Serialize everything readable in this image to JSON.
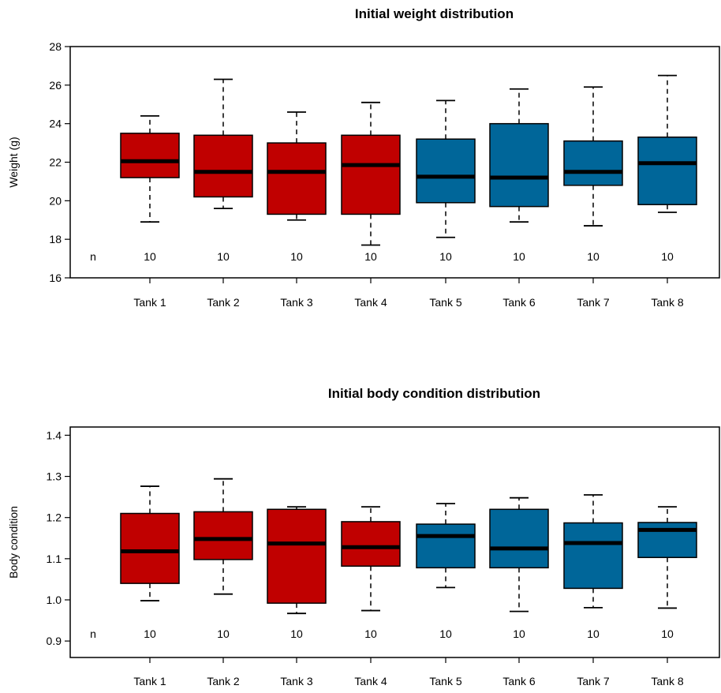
{
  "chart_data": [
    {
      "type": "box",
      "title": "Initial weight distribution",
      "ylabel": "Weight (g)",
      "xlabel": "",
      "ylim": [
        16,
        28
      ],
      "yticks": [
        "16",
        "18",
        "20",
        "22",
        "24",
        "26",
        "28"
      ],
      "n_label": "n",
      "categories": [
        "Tank 1",
        "Tank 2",
        "Tank 3",
        "Tank 4",
        "Tank 5",
        "Tank 6",
        "Tank 7",
        "Tank 8"
      ],
      "n": [
        "10",
        "10",
        "10",
        "10",
        "10",
        "10",
        "10",
        "10"
      ],
      "fill_colors": [
        "#c00000",
        "#c00000",
        "#c00000",
        "#c00000",
        "#006699",
        "#006699",
        "#006699",
        "#006699"
      ],
      "boxes": [
        {
          "min": 18.9,
          "q1": 21.2,
          "median": 22.05,
          "q3": 23.5,
          "max": 24.4
        },
        {
          "min": 19.6,
          "q1": 20.2,
          "median": 21.5,
          "q3": 23.4,
          "max": 26.3
        },
        {
          "min": 19.0,
          "q1": 19.3,
          "median": 21.5,
          "q3": 23.0,
          "max": 24.6
        },
        {
          "min": 17.7,
          "q1": 19.3,
          "median": 21.85,
          "q3": 23.4,
          "max": 25.1
        },
        {
          "min": 18.1,
          "q1": 19.9,
          "median": 21.25,
          "q3": 23.2,
          "max": 25.2
        },
        {
          "min": 18.9,
          "q1": 19.7,
          "median": 21.2,
          "q3": 24.0,
          "max": 25.8
        },
        {
          "min": 18.7,
          "q1": 20.8,
          "median": 21.5,
          "q3": 23.1,
          "max": 25.9
        },
        {
          "min": 19.4,
          "q1": 19.8,
          "median": 21.95,
          "q3": 23.3,
          "max": 26.5
        }
      ],
      "grid": false
    },
    {
      "type": "box",
      "title": "Initial body condition distribution",
      "ylabel": "Body condition",
      "xlabel": "",
      "ylim": [
        0.86,
        1.42
      ],
      "yticks": [
        "0.9",
        "1.0",
        "1.1",
        "1.2",
        "1.3",
        "1.4"
      ],
      "n_label": "n",
      "categories": [
        "Tank 1",
        "Tank 2",
        "Tank 3",
        "Tank 4",
        "Tank 5",
        "Tank 6",
        "Tank 7",
        "Tank 8"
      ],
      "n": [
        "10",
        "10",
        "10",
        "10",
        "10",
        "10",
        "10",
        "10"
      ],
      "fill_colors": [
        "#c00000",
        "#c00000",
        "#c00000",
        "#c00000",
        "#006699",
        "#006699",
        "#006699",
        "#006699"
      ],
      "boxes": [
        {
          "min": 0.998,
          "q1": 1.04,
          "median": 1.118,
          "q3": 1.21,
          "max": 1.276
        },
        {
          "min": 1.014,
          "q1": 1.098,
          "median": 1.148,
          "q3": 1.214,
          "max": 1.294
        },
        {
          "min": 0.967,
          "q1": 0.992,
          "median": 1.137,
          "q3": 1.22,
          "max": 1.226
        },
        {
          "min": 0.974,
          "q1": 1.082,
          "median": 1.128,
          "q3": 1.19,
          "max": 1.226
        },
        {
          "min": 1.03,
          "q1": 1.078,
          "median": 1.155,
          "q3": 1.184,
          "max": 1.234
        },
        {
          "min": 0.972,
          "q1": 1.078,
          "median": 1.125,
          "q3": 1.22,
          "max": 1.248
        },
        {
          "min": 0.981,
          "q1": 1.028,
          "median": 1.138,
          "q3": 1.187,
          "max": 1.255
        },
        {
          "min": 0.98,
          "q1": 1.103,
          "median": 1.17,
          "q3": 1.188,
          "max": 1.226
        }
      ],
      "grid": false
    }
  ]
}
